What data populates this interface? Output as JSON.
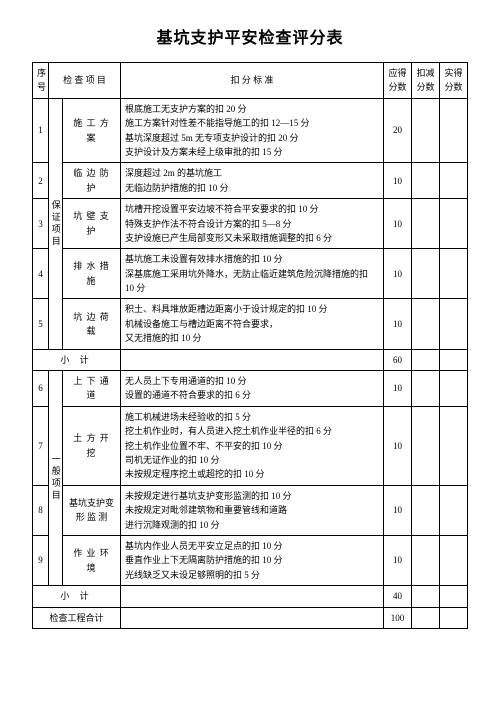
{
  "title": "基坑支护平安检查评分表",
  "headers": {
    "seq": "序号",
    "item": "检 查 项 目",
    "standard": "扣  分  标  准",
    "should": "应得分数",
    "deduct": "扣减分数",
    "actual": "实得分数"
  },
  "vcat1": "保证项目",
  "vcat2": "一般项目",
  "rows": [
    {
      "seq": "1",
      "item": "施 工 方 案",
      "std": [
        "根底施工无支护方案的扣 20 分",
        "施工方案针对性差不能指导施工的扣 12—15 分",
        "基坑深度超过 5m 无专项支护设计的扣 20 分",
        "支护设计及方案未经上级审批的扣 15 分"
      ],
      "score": "20"
    },
    {
      "seq": "2",
      "item": "临 边 防 护",
      "std": [
        "深度超过 2m 的基坑施工",
        "无临边防护措施的扣 10 分"
      ],
      "score": "10"
    },
    {
      "seq": "3",
      "item": "坑 壁 支 护",
      "std": [
        "坑槽开挖设置平安边坡不符合平安要求的扣 10 分",
        "特殊支护作法不符合设计方案的扣 5—8 分",
        "支护设施已产生局部变形又未采取措施调整的扣 6 分"
      ],
      "score": "10"
    },
    {
      "seq": "4",
      "item": "排 水 措 施",
      "std": [
        "基坑施工未设置有效排水措施的扣 10 分",
        "深基底施工采用坑外降水，无防止临近建筑危险沉降措施的扣 10 分"
      ],
      "score": "10"
    },
    {
      "seq": "5",
      "item": "坑 边 荷 载",
      "std": [
        "积土、料具堆放距槽边距离小于设计规定的扣 10 分",
        "机械设备施工与槽边距离不符合要求，",
        "又无措施的扣 10 分"
      ],
      "score": "10"
    },
    {
      "subtotal": "小  计",
      "score": "60"
    },
    {
      "seq": "6",
      "item": "上 下 通 道",
      "std": [
        "无人员上下专用通道的扣 10 分",
        "设置的通道不符合要求的扣 6 分"
      ],
      "score": "10"
    },
    {
      "seq": "7",
      "item": "土 方 开 挖",
      "std": [
        "施工机械进场未经验收的扣 5 分",
        "挖土机作业时，有人员进入挖土机作业半径的扣 6 分",
        "挖土机作业位置不牢、不平安的扣 10 分",
        "司机无证作业的扣 10 分",
        "未按规定程序挖土或超挖的扣 10 分"
      ],
      "score": "10"
    },
    {
      "seq": "8",
      "item": "基坑支护变形 监 测",
      "std": [
        "未按规定进行基坑支护变形监测的扣 10 分",
        "未按规定对毗邻建筑物和重要管线和道路",
        "进行沉降观测的扣 10 分"
      ],
      "score": "10"
    },
    {
      "seq": "9",
      "item": "作 业 环 境",
      "std": [
        "基坑内作业人员无平安立足点的扣 10 分",
        "垂直作业上下无隔离防护措施的扣 10 分",
        "光线缺乏又未设足够照明的扣 5 分"
      ],
      "score": "10"
    },
    {
      "subtotal": "小  计",
      "score": "40"
    }
  ],
  "totalLabel": "检查工程合计",
  "totalScore": "100"
}
